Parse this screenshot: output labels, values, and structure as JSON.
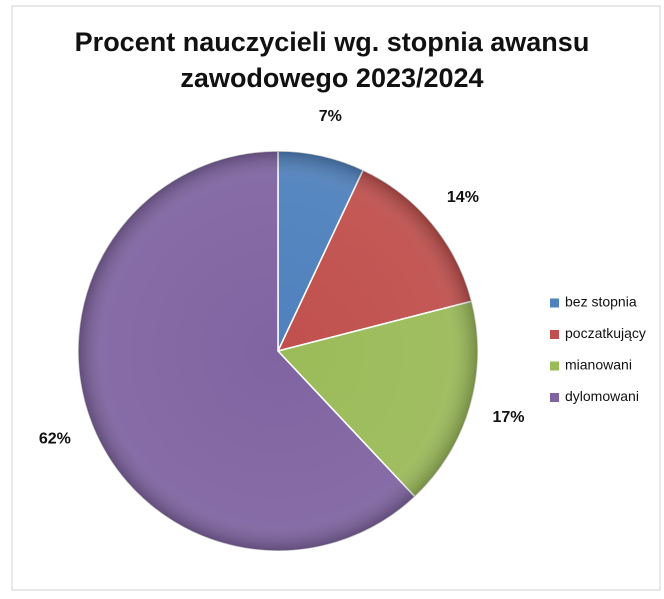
{
  "chart_data": {
    "type": "pie",
    "title": [
      "Procent nauczycieli wg. stopnia awansu",
      "zawodowego 2023/2024"
    ],
    "categories": [
      "bez stopnia",
      "poczatkujący",
      "mianowani",
      "dylomowani"
    ],
    "values": [
      7,
      14,
      17,
      62
    ],
    "value_labels": [
      "7%",
      "14%",
      "17%",
      "62%"
    ],
    "colors": [
      "#4f81bd",
      "#c0504d",
      "#9bbb59",
      "#8064a2"
    ],
    "legend": "right"
  }
}
